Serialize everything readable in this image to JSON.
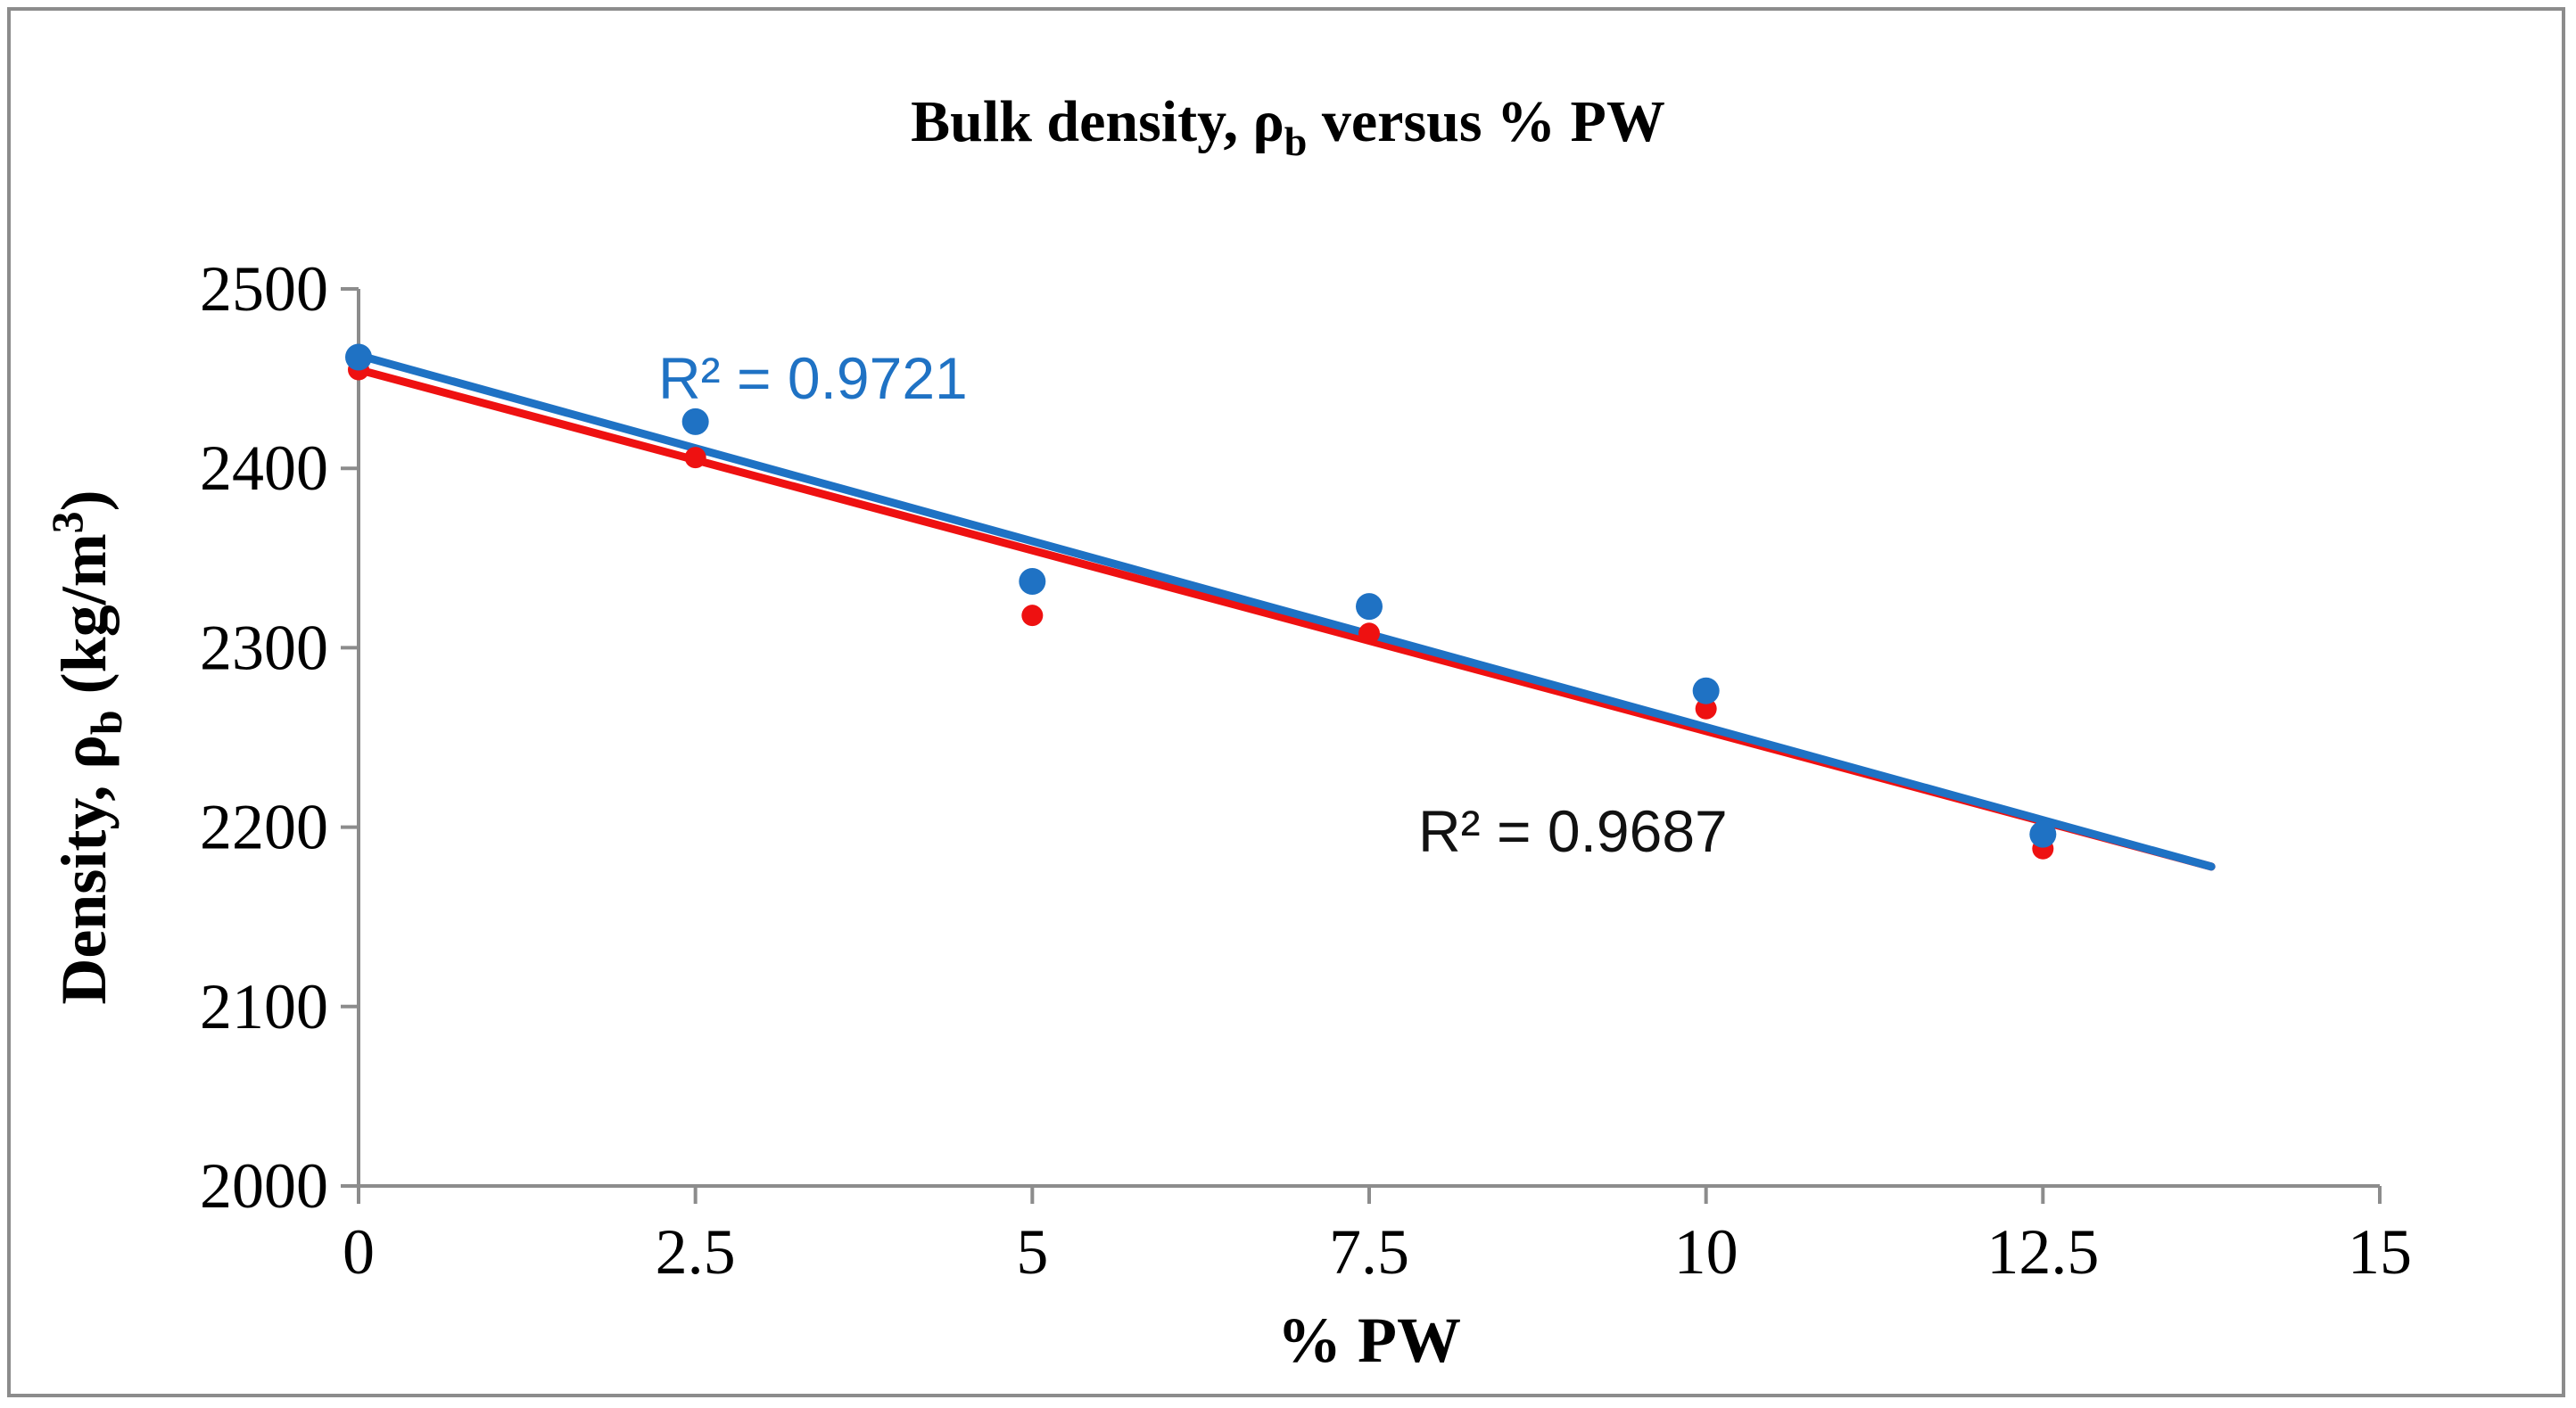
{
  "chart_data": {
    "type": "scatter",
    "title": {
      "main": "Bulk density, ρ",
      "subscript": "b",
      "rest": " versus % PW"
    },
    "xlabel": "% PW",
    "ylabel": {
      "main": "Density, ρ",
      "subscript": "b",
      "rest": " (kg/m",
      "superscript": "3",
      "close": ")"
    },
    "xlim": [
      0,
      15
    ],
    "ylim": [
      2000,
      2500
    ],
    "x_ticks": [
      "0",
      "2.5",
      "5",
      "7.5",
      "10",
      "12.5",
      "15"
    ],
    "y_ticks": [
      "2000",
      "2100",
      "2200",
      "2300",
      "2400",
      "2500"
    ],
    "grid": false,
    "legend": "none",
    "series": [
      {
        "color": "#ee1111",
        "x": [
          0,
          2.5,
          5,
          7.5,
          10,
          12.5
        ],
        "y": [
          2455,
          2406,
          2318,
          2308,
          2266,
          2188
        ],
        "trendline": {
          "type": "linear",
          "x_range": [
            0,
            13.75
          ],
          "y_start": 2455,
          "y_end": 2178
        },
        "r_squared_label": "R² = 0.9687",
        "label_color": "#111111"
      },
      {
        "color": "#1f72c4",
        "x": [
          0,
          2.5,
          5,
          7.5,
          10,
          12.5
        ],
        "y": [
          2462,
          2426,
          2337,
          2323,
          2276,
          2196
        ],
        "trendline": {
          "type": "linear",
          "x_range": [
            0,
            13.75
          ],
          "y_start": 2463,
          "y_end": 2178
        },
        "r_squared_label": "R² = 0.9721",
        "label_color": "#1f72c4"
      }
    ]
  }
}
